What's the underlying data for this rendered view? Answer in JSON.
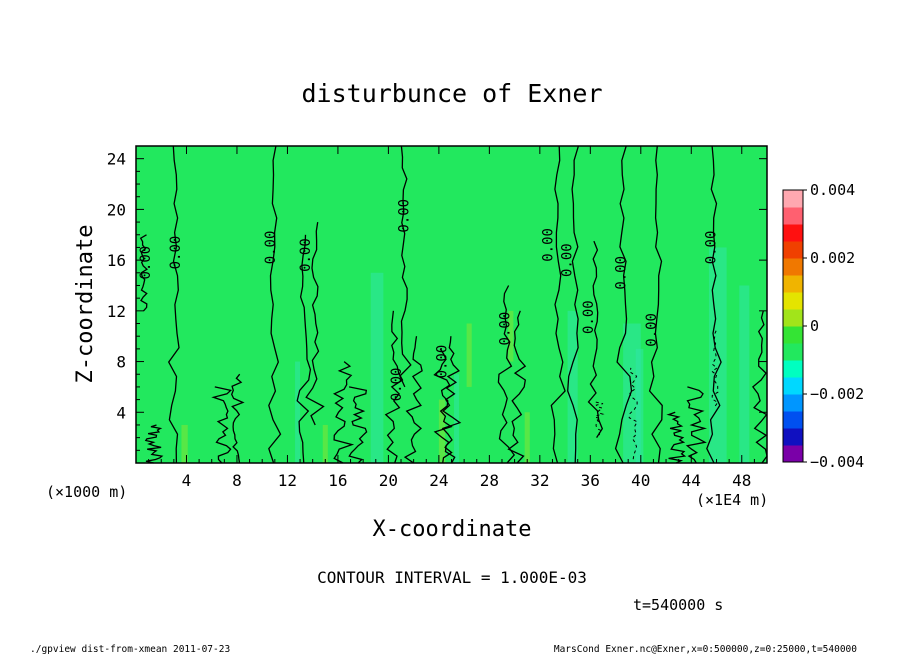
{
  "chart_data": {
    "type": "heatmap",
    "title": "disturbunce of Exner",
    "xlabel": "X-coordinate",
    "ylabel": "Z-coordinate",
    "x_unit_left": "(×1000 m)",
    "x_unit_right": "(×1E4 m)",
    "xlim": [
      0,
      50
    ],
    "ylim": [
      0,
      25
    ],
    "xticks": [
      4,
      8,
      12,
      16,
      20,
      24,
      28,
      32,
      36,
      40,
      44,
      48
    ],
    "yticks": [
      4,
      8,
      12,
      16,
      20,
      24
    ],
    "colorbar": {
      "range": [
        -0.004,
        0.004
      ],
      "tick_labels": [
        "0.004",
        "0.002",
        "0",
        "−0.002",
        "−0.004"
      ],
      "tick_values": [
        0.004,
        0.002,
        0,
        -0.002,
        -0.004
      ],
      "colors": [
        "#7a00a8",
        "#1010c0",
        "#0050f0",
        "#0096ff",
        "#00d8ff",
        "#00ffc0",
        "#22e85e",
        "#34e434",
        "#a2e41a",
        "#e4e400",
        "#f0b400",
        "#f07800",
        "#f04000",
        "#ff1010",
        "#ff6070",
        "#ffa8b0"
      ]
    },
    "contour_interval": "CONTOUR INTERVAL = 1.000E-03",
    "contour_label": "0.00",
    "contour_label_positions": [
      [
        1.1,
        15.8
      ],
      [
        3.5,
        16.6
      ],
      [
        11.0,
        17.0
      ],
      [
        13.8,
        16.4
      ],
      [
        21.6,
        19.5
      ],
      [
        21.0,
        6.2
      ],
      [
        24.6,
        8.0
      ],
      [
        29.6,
        10.6
      ],
      [
        33.0,
        17.2
      ],
      [
        34.5,
        16.0
      ],
      [
        36.2,
        11.5
      ],
      [
        38.8,
        15.0
      ],
      [
        41.2,
        10.5
      ],
      [
        45.9,
        17.0
      ]
    ],
    "time_label": "t=540000 s"
  },
  "footer": {
    "left": "./gpview_dist-from-xmean  2011-07-23",
    "right": "MarsCond_Exner.nc@Exner,x=0:500000,z=0:25000,t=540000"
  }
}
